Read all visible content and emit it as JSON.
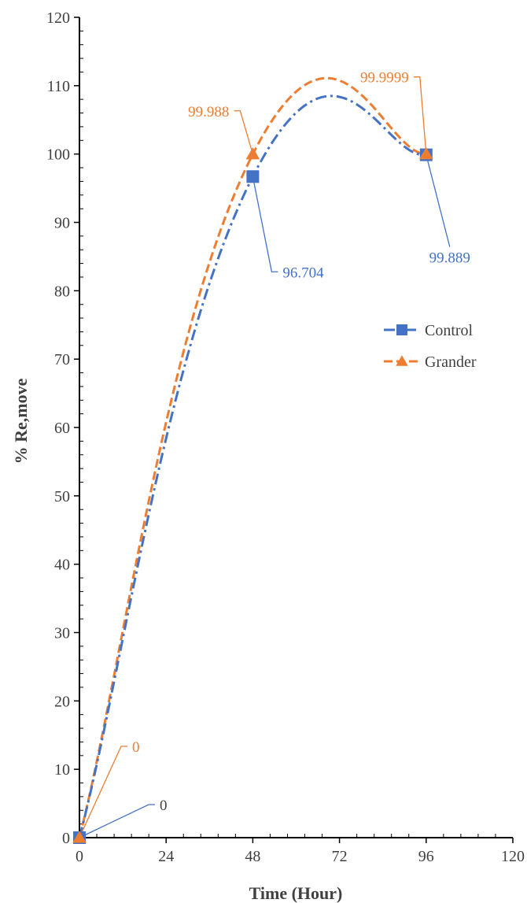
{
  "chart_data": {
    "type": "line",
    "title": "",
    "xlabel": "Time (Hour)",
    "ylabel": "% Re,move",
    "xlim": [
      0,
      120
    ],
    "ylim": [
      0,
      120
    ],
    "x_ticks": [
      0,
      24,
      48,
      72,
      96,
      120
    ],
    "y_ticks": [
      0,
      10,
      20,
      30,
      40,
      50,
      60,
      70,
      80,
      90,
      100,
      110,
      120
    ],
    "grid": false,
    "legend_position": "right",
    "series": [
      {
        "name": "Control",
        "color": "#4472C4",
        "marker": "square",
        "line_style": "dash-dot",
        "smooth": true,
        "x": [
          0,
          48,
          96
        ],
        "y": [
          0,
          96.704,
          99.889
        ],
        "labels": [
          "0",
          "96.704",
          "99.889"
        ]
      },
      {
        "name": "Grander",
        "color": "#ED7D31",
        "marker": "triangle",
        "line_style": "dashed",
        "smooth": true,
        "x": [
          0,
          48,
          96
        ],
        "y": [
          0,
          99.988,
          99.9999
        ],
        "labels": [
          "0",
          "99.988",
          "99.9999"
        ]
      }
    ]
  }
}
